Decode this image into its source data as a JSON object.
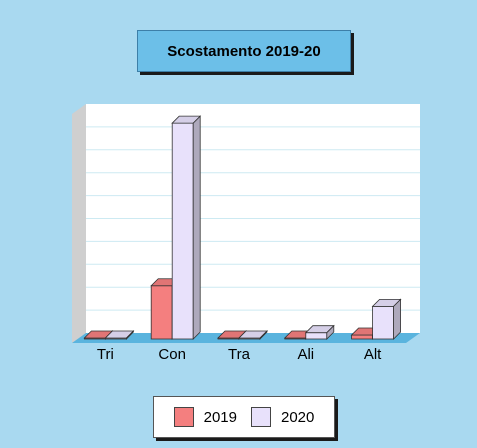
{
  "colors": {
    "background": "#a9d9f0",
    "title_bg": "#6cbfe8",
    "series_2019": "#f47f7f",
    "series_2020": "#e8e1fb"
  },
  "chart_data": {
    "type": "bar",
    "title": "Scostamento 2019-20",
    "categories": [
      "Tri",
      "Con",
      "Tra",
      "Ali",
      "Alt"
    ],
    "series": [
      {
        "name": "2019",
        "values": [
          0.3,
          25,
          2,
          1.5,
          3.5
        ]
      },
      {
        "name": "2020",
        "values": [
          0.2,
          96,
          0.3,
          4.5,
          16
        ]
      }
    ],
    "ylim": [
      0,
      100
    ],
    "grid": true,
    "legend_position": "bottom",
    "three_d": true
  }
}
